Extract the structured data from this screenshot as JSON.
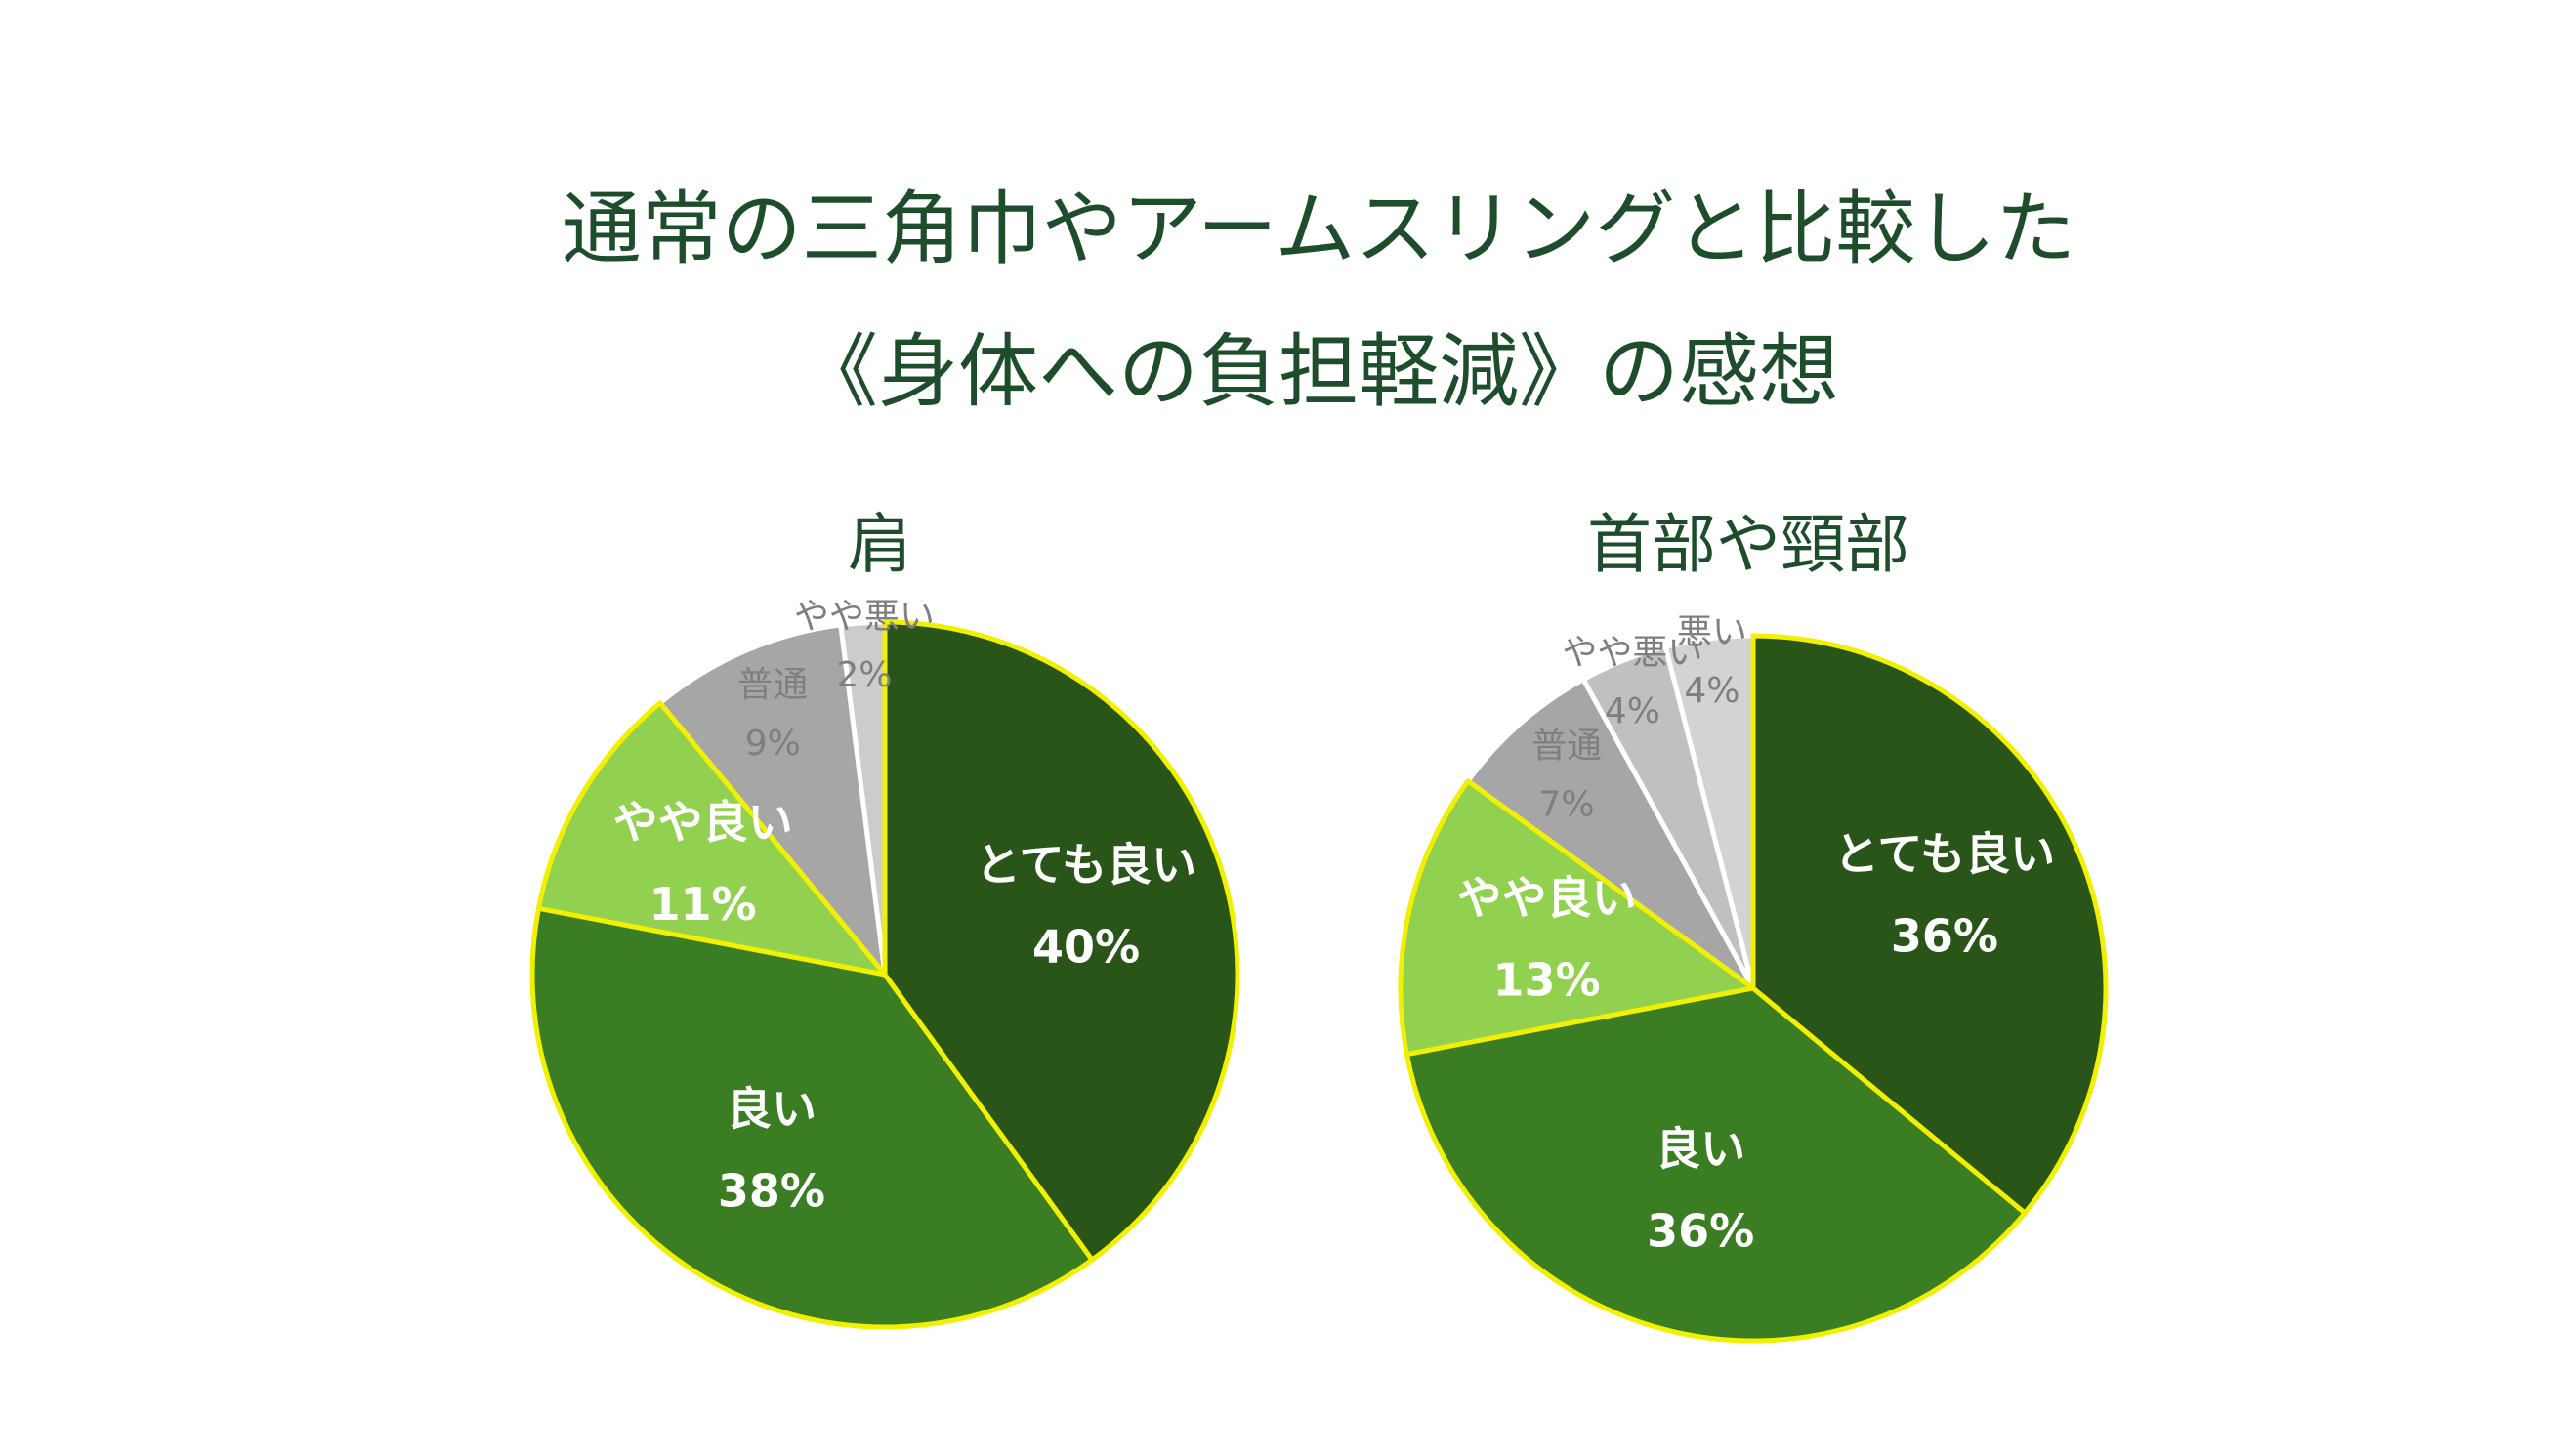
{
  "title": [
    "通常の三角巾やアームスリングと比較した",
    "《身体への負担軽減》の感想"
  ],
  "chart_data": [
    {
      "type": "pie",
      "title": "肩",
      "categories": [
        "とても良い",
        "良い",
        "やや良い",
        "普通",
        "やや悪い"
      ],
      "values": [
        40,
        38,
        11,
        9,
        2
      ],
      "value_labels": [
        "40%",
        "38%",
        "11%",
        "9%",
        "2%"
      ],
      "colors": [
        "#2a5518",
        "#3a7d22",
        "#92d050",
        "#a6a6a6",
        "#cccccc"
      ],
      "edge_colors": [
        "#f0f000",
        "#f0f000",
        "#f0f000",
        "#ffffff",
        "#ffffff"
      ],
      "label_colors": [
        "#ffffff",
        "#ffffff",
        "#ffffff",
        "#7f7f7f",
        "#7f7f7f"
      ]
    },
    {
      "type": "pie",
      "title": "首部や頸部",
      "categories": [
        "とても良い",
        "良い",
        "やや良い",
        "普通",
        "やや悪い",
        "悪い"
      ],
      "values": [
        36,
        36,
        13,
        7,
        4,
        4
      ],
      "value_labels": [
        "36%",
        "36%",
        "13%",
        "7%",
        "4%",
        "4%"
      ],
      "colors": [
        "#2a5518",
        "#3a7d22",
        "#92d050",
        "#a6a6a6",
        "#c0c0c0",
        "#d3d3d3"
      ],
      "edge_colors": [
        "#f0f000",
        "#f0f000",
        "#f0f000",
        "#ffffff",
        "#ffffff",
        "#ffffff"
      ],
      "label_colors": [
        "#ffffff",
        "#ffffff",
        "#ffffff",
        "#7f7f7f",
        "#7f7f7f",
        "#7f7f7f"
      ]
    }
  ]
}
